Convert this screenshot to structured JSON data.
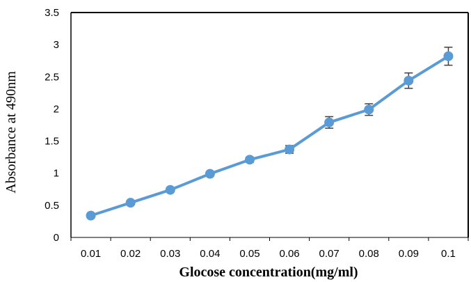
{
  "chart_data": {
    "type": "line",
    "title": "",
    "xlabel": "Glocose concentration(mg/ml)",
    "ylabel": "Absorbance at 490nm",
    "categories": [
      "0.01",
      "0.02",
      "0.03",
      "0.04",
      "0.05",
      "0.06",
      "0.07",
      "0.08",
      "0.09",
      "0.1"
    ],
    "y_ticks": [
      "0",
      "0.5",
      "1",
      "1.5",
      "2",
      "2.5",
      "3",
      "3.5"
    ],
    "ylim": [
      0,
      3.5
    ],
    "grid": false,
    "legend": false,
    "series": [
      {
        "values": [
          0.34,
          0.54,
          0.74,
          0.99,
          1.21,
          1.37,
          1.79,
          1.99,
          2.44,
          2.82
        ],
        "error": [
          0.02,
          0.03,
          0.03,
          0.03,
          0.04,
          0.06,
          0.09,
          0.09,
          0.12,
          0.14
        ],
        "color": "#5B9BD5"
      }
    ]
  }
}
